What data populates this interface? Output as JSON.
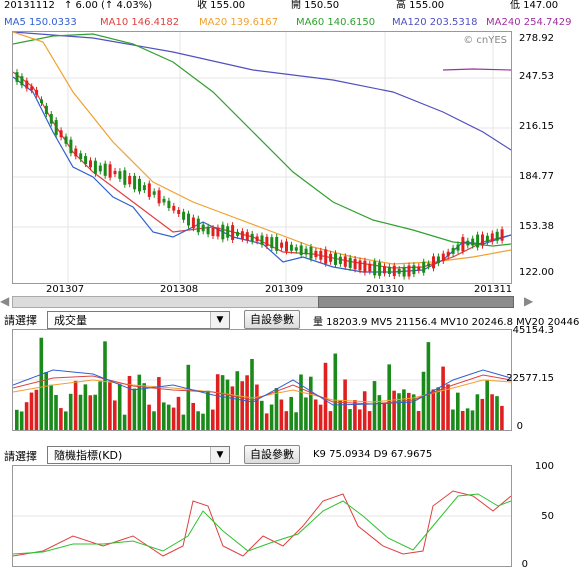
{
  "header": {
    "date": "20131112",
    "change": "↑ 6.00 (↑ 4.03%)",
    "close": "收 155.00",
    "open": "開 150.50",
    "high": "高 155.00",
    "low": "低 147.00"
  },
  "ma_legend": {
    "ma5": "MA5 150.0333",
    "ma10": "MA10 146.4182",
    "ma20": "MA20 139.6167",
    "ma60": "MA60 140.6150",
    "ma120": "MA120 203.5318",
    "ma240": "MA240 254.7429"
  },
  "colors": {
    "up": "#e02020",
    "down": "#1a8a1a",
    "ma5": "#3060d0",
    "ma10": "#e04040",
    "ma20": "#f0a030",
    "ma60": "#30a030",
    "ma120": "#5050c0",
    "ma240": "#a030a0"
  },
  "watermark": "© cnYES",
  "price_axis": [
    "278.92",
    "247.53",
    "216.15",
    "184.77",
    "153.38",
    "122.00"
  ],
  "date_axis": [
    "201307",
    "201308",
    "201309",
    "201310",
    "201311"
  ],
  "volume_panel": {
    "select_label": "請選擇",
    "select_value": "成交量",
    "settings_button": "自設參數",
    "stats": "量 18203.9  MV5 21156.4  MV10 20246.8  MV20 20446",
    "axis": [
      "45154.3",
      "22577.15",
      "0"
    ]
  },
  "kd_panel": {
    "select_label": "請選擇",
    "select_value": "隨機指標(KD)",
    "settings_button": "自設參數",
    "stats": "K9 75.0934   D9 67.9675",
    "axis": [
      "100",
      "50",
      "0"
    ]
  },
  "icons": {
    "scroll_left": "scroll-left-arrow-icon",
    "scroll_right": "scroll-right-arrow-icon",
    "dropdown": "chevron-down-icon"
  }
}
